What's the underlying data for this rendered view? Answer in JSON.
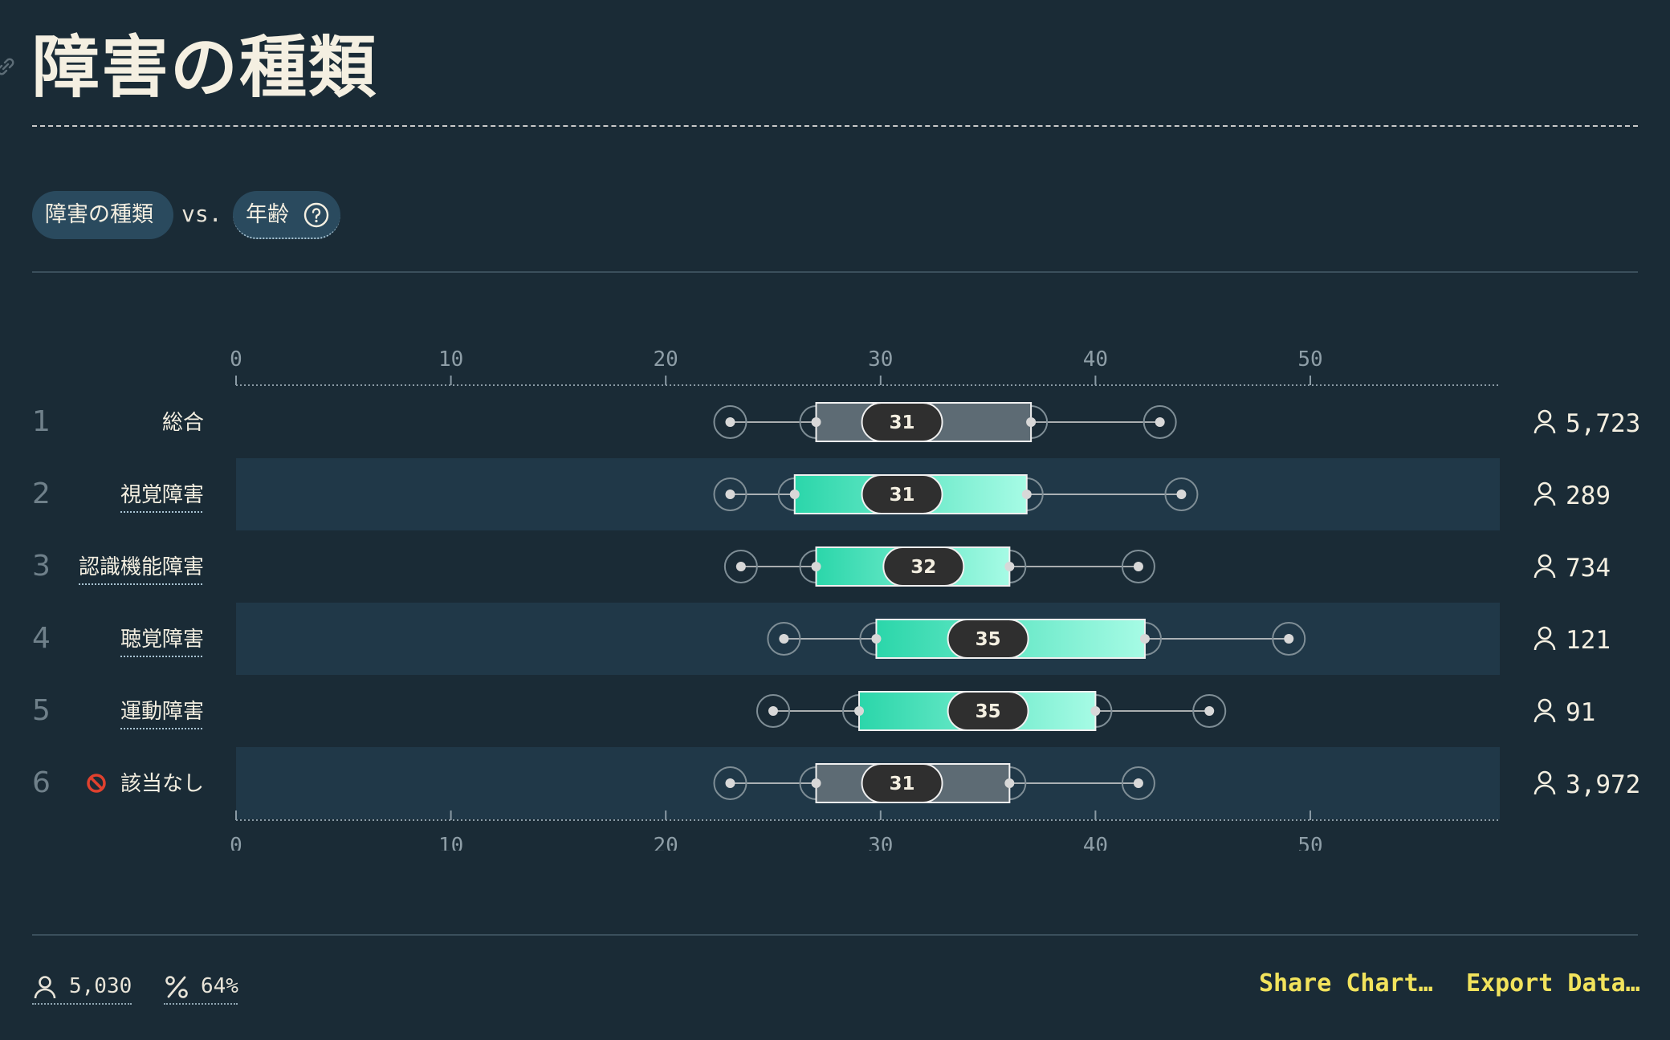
{
  "page": {
    "title": "障害の種類"
  },
  "selector": {
    "dimension": "障害の種類",
    "vs": "vs.",
    "metric": "年齢",
    "help_icon": "question-circle-icon"
  },
  "footer": {
    "users_icon": "user-icon",
    "users": "5,030",
    "percent_icon": "percent-icon",
    "percent": "64%",
    "share_label": "Share Chart…",
    "export_label": "Export Data…"
  },
  "colors": {
    "background": "#1a2b36",
    "row_band": "#203848",
    "accent_start": "#2bd6aa",
    "accent_end": "#a6fbe5",
    "neutral_box": "#5d6b74",
    "median_pill": "#2f2f2f",
    "link": "#f2e35c"
  },
  "chart_data": {
    "type": "boxplot",
    "orientation": "horizontal",
    "xlim": [
      0,
      59
    ],
    "x_ticks": [
      0,
      10,
      20,
      30,
      40,
      50
    ],
    "rows": [
      {
        "rank": "1",
        "label": "総合",
        "icon": "",
        "count": "5,723",
        "min": 23,
        "q1": 27,
        "median": 31,
        "q3": 37,
        "max": 43,
        "style": "neutral",
        "banded": false,
        "underlined": false
      },
      {
        "rank": "2",
        "label": "視覚障害",
        "icon": "",
        "count": "289",
        "min": 23,
        "q1": 26,
        "median": 31,
        "q3": 36.8,
        "max": 44,
        "style": "accent",
        "banded": true,
        "underlined": true
      },
      {
        "rank": "3",
        "label": "認識機能障害",
        "icon": "",
        "count": "734",
        "min": 23.5,
        "q1": 27,
        "median": 32,
        "q3": 36,
        "max": 42,
        "style": "accent",
        "banded": false,
        "underlined": true
      },
      {
        "rank": "4",
        "label": "聴覚障害",
        "icon": "",
        "count": "121",
        "min": 25.5,
        "q1": 29.8,
        "median": 35,
        "q3": 42.3,
        "max": 49,
        "style": "accent",
        "banded": true,
        "underlined": true
      },
      {
        "rank": "5",
        "label": "運動障害",
        "icon": "",
        "count": "91",
        "min": 25,
        "q1": 29,
        "median": 35,
        "q3": 40,
        "max": 45.3,
        "style": "accent",
        "banded": false,
        "underlined": true
      },
      {
        "rank": "6",
        "label": "該当なし",
        "icon": "prohibited-icon",
        "count": "3,972",
        "min": 23,
        "q1": 27,
        "median": 31,
        "q3": 36,
        "max": 42,
        "style": "neutral",
        "banded": true,
        "underlined": false
      }
    ]
  }
}
